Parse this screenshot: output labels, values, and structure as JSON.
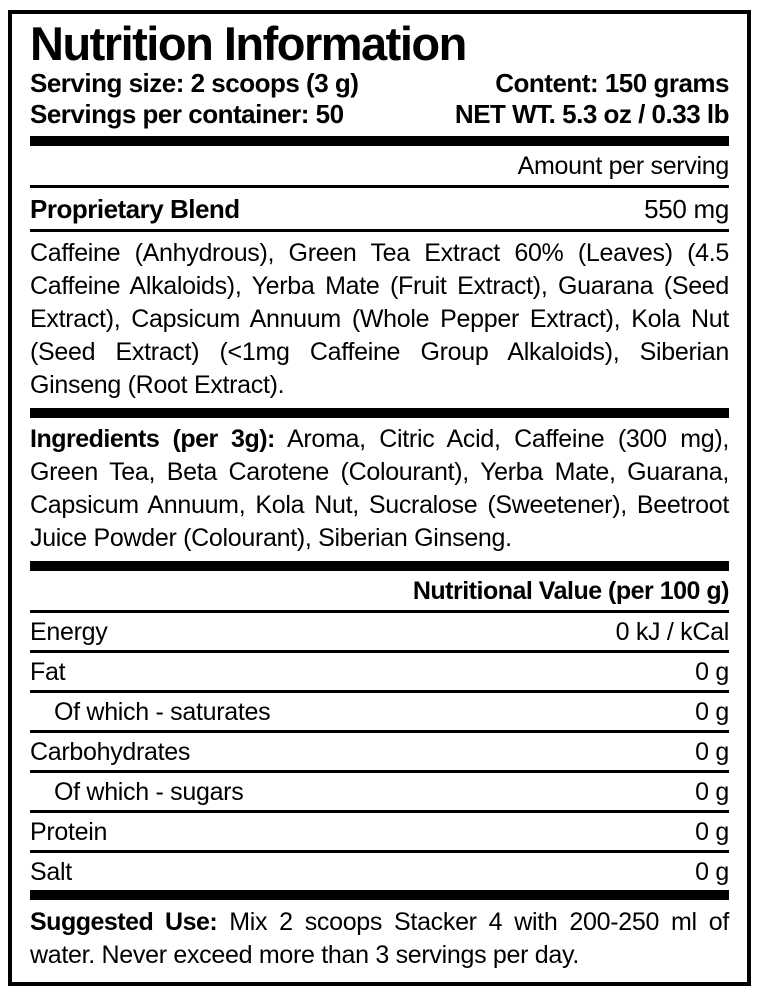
{
  "label": {
    "title": "Nutrition Information",
    "header_rows": [
      {
        "left": "Serving size: 2 scoops (3 g)",
        "right": "Content: 150 grams"
      },
      {
        "left": "Servings per container: 50",
        "right": "NET WT. 5.3 oz / 0.33 lb"
      }
    ],
    "amount_per_serving": "Amount per serving",
    "proprietary_blend": {
      "name": "Proprietary Blend",
      "amount": "550 mg"
    },
    "blend_ingredients": "Caffeine (Anhydrous), Green Tea Extract 60% (Leaves) (4.5 Caffeine Alkaloids), Yerba Mate (Fruit Extract), Guarana (Seed Extract), Capsicum Annuum (Whole Pepper Extract), Kola Nut (Seed Extract) (<1mg Caffeine Group Alkaloids), Siberian Ginseng (Root Extract).",
    "ingredients": {
      "lead": "Ingredients (per 3g):",
      "text": " Aroma, Citric Acid, Caffeine (300 mg), Green Tea, Beta Carotene (Colourant), Yerba Mate, Guarana, Capsicum Annuum, Kola Nut, Sucralose (Sweetener), Beetroot Juice Powder (Colourant), Siberian Ginseng."
    },
    "nutritional_values": {
      "header": "Nutritional Value (per 100 g)",
      "rows": [
        {
          "label": "Energy",
          "value": "0 kJ / kCal"
        },
        {
          "label": "Fat",
          "value": "0 g"
        },
        {
          "label": "Of which - saturates",
          "value": "0 g"
        },
        {
          "label": "Carbohydrates",
          "value": "0 g"
        },
        {
          "label": "Of which - sugars",
          "value": "0 g"
        },
        {
          "label": "Protein",
          "value": "0 g"
        },
        {
          "label": "Salt",
          "value": "0 g"
        }
      ]
    },
    "suggested_use": {
      "lead": "Suggested Use:",
      "text": " Mix 2 scoops Stacker 4 with 200-250 ml of water. Never exceed more than 3 servings per day."
    },
    "colors": {
      "ink": "#000000",
      "background": "#ffffff"
    }
  }
}
